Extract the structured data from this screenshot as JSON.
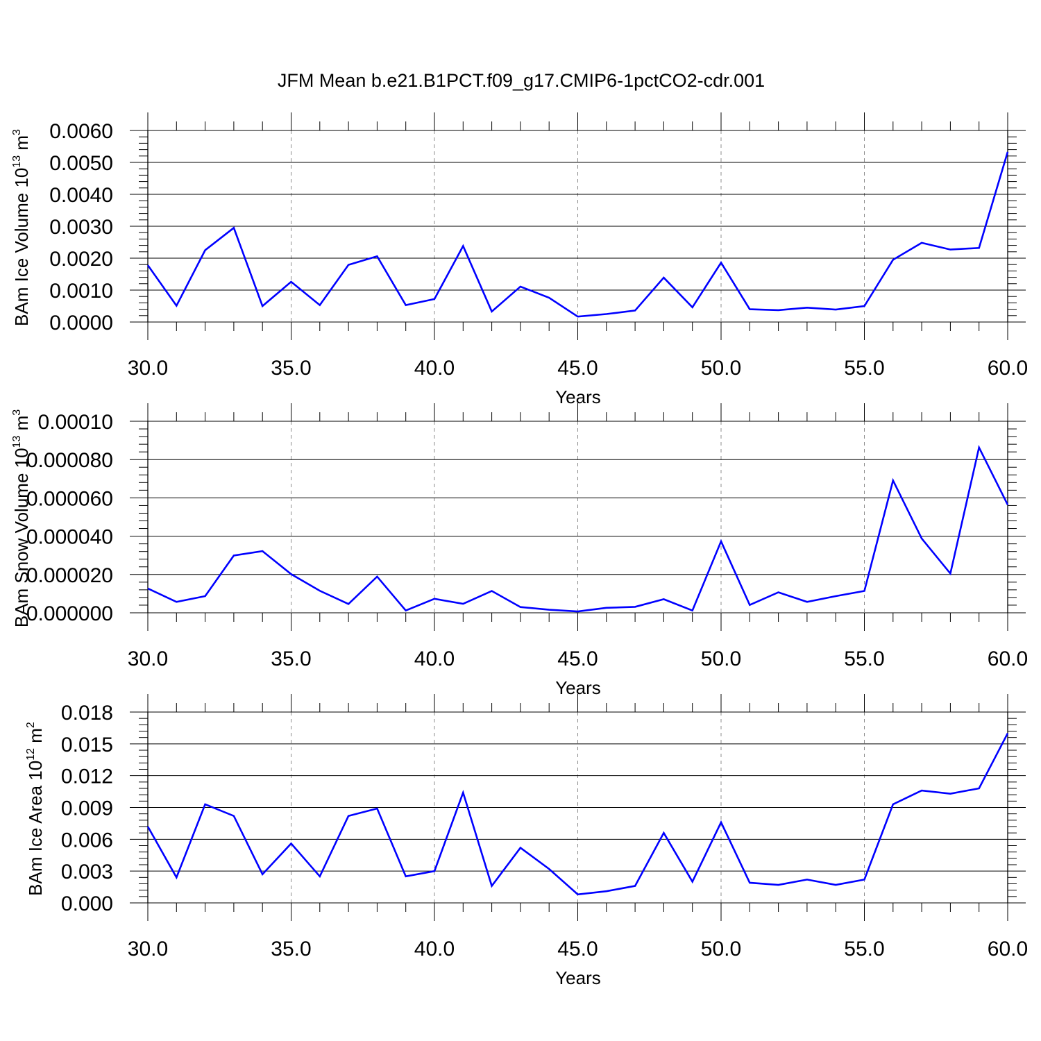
{
  "title": "JFM Mean b.e21.B1PCT.f09_g17.CMIP6-1pctCO2-cdr.001",
  "colors": {
    "line": "#0000ff",
    "axis": "#000000",
    "grid": "#8c8c8c",
    "background": "#ffffff"
  },
  "chart_data": [
    {
      "type": "line",
      "title": "",
      "xlabel": "Years",
      "ylabel": {
        "text": "BAm Ice Volume 10",
        "sup": "13",
        "unit": " m",
        "unit_sup": "3"
      },
      "xlim": [
        30,
        60
      ],
      "ylim": [
        0,
        0.006
      ],
      "x_ticks": [
        "30.0",
        "35.0",
        "40.0",
        "45.0",
        "50.0",
        "55.0",
        "60.0"
      ],
      "y_ticks": [
        "0.0000",
        "0.0010",
        "0.0020",
        "0.0030",
        "0.0040",
        "0.0050",
        "0.0060"
      ],
      "grid": "vertical dashed at major x ticks",
      "series": [
        {
          "x": [
            30,
            31,
            32,
            33,
            34,
            35,
            36,
            37,
            38,
            39,
            40,
            41,
            42,
            43,
            44,
            45,
            46,
            47,
            48,
            49,
            50,
            51,
            52,
            53,
            54,
            55,
            56,
            57,
            58,
            59,
            60
          ],
          "values": [
            0.00178,
            0.00051,
            0.00225,
            0.00295,
            0.0005,
            0.00126,
            0.00053,
            0.00179,
            0.00206,
            0.00053,
            0.00072,
            0.00238,
            0.00033,
            0.00111,
            0.00076,
            0.00017,
            0.00025,
            0.00036,
            0.00139,
            0.00046,
            0.00186,
            0.0004,
            0.00037,
            0.00045,
            0.00039,
            0.0005,
            0.00195,
            0.00248,
            0.00227,
            0.00232,
            0.00533
          ]
        }
      ]
    },
    {
      "type": "line",
      "title": "",
      "xlabel": "Years",
      "ylabel": {
        "text": "BAm Snow Volume 10",
        "sup": "13",
        "unit": " m",
        "unit_sup": "3"
      },
      "xlim": [
        30,
        60
      ],
      "ylim": [
        0,
        0.0001
      ],
      "x_ticks": [
        "30.0",
        "35.0",
        "40.0",
        "45.0",
        "50.0",
        "55.0",
        "60.0"
      ],
      "y_ticks": [
        "0.000000",
        "0.000020",
        "0.000040",
        "0.000060",
        "0.000080",
        "0.00010"
      ],
      "grid": "vertical dashed at major x ticks",
      "series": [
        {
          "x": [
            30,
            31,
            32,
            33,
            34,
            35,
            36,
            37,
            38,
            39,
            40,
            41,
            42,
            43,
            44,
            45,
            46,
            47,
            48,
            49,
            50,
            51,
            52,
            53,
            54,
            55,
            56,
            57,
            58,
            59,
            60
          ],
          "values": [
            1.27e-05,
            5.7e-06,
            8.7e-06,
            2.99e-05,
            3.22e-05,
            2.02e-05,
            1.15e-05,
            4.6e-06,
            1.89e-05,
            1.2e-06,
            7.3e-06,
            4.7e-06,
            1.14e-05,
            3e-06,
            1.6e-06,
            7e-07,
            2.6e-06,
            3.1e-06,
            7.1e-06,
            1.2e-06,
            3.73e-05,
            4.1e-06,
            1.07e-05,
            5.7e-06,
            8.7e-06,
            1.14e-05,
            6.91e-05,
            3.88e-05,
            2.05e-05,
            8.63e-05,
            5.64e-05
          ]
        }
      ]
    },
    {
      "type": "line",
      "title": "",
      "xlabel": "Years",
      "ylabel": {
        "text": "BAm Ice Area 10",
        "sup": "12",
        "unit": " m",
        "unit_sup": "2"
      },
      "xlim": [
        30,
        60
      ],
      "ylim": [
        0,
        0.018
      ],
      "x_ticks": [
        "30.0",
        "35.0",
        "40.0",
        "45.0",
        "50.0",
        "55.0",
        "60.0"
      ],
      "y_ticks": [
        "0.000",
        "0.003",
        "0.006",
        "0.009",
        "0.012",
        "0.015",
        "0.018"
      ],
      "grid": "vertical dashed at major x ticks",
      "series": [
        {
          "x": [
            30,
            31,
            32,
            33,
            34,
            35,
            36,
            37,
            38,
            39,
            40,
            41,
            42,
            43,
            44,
            45,
            46,
            47,
            48,
            49,
            50,
            51,
            52,
            53,
            54,
            55,
            56,
            57,
            58,
            59,
            60
          ],
          "values": [
            0.0072,
            0.0024,
            0.0093,
            0.0082,
            0.0027,
            0.0056,
            0.0025,
            0.0082,
            0.0089,
            0.0025,
            0.003,
            0.0104,
            0.0016,
            0.0052,
            0.0032,
            0.0008,
            0.0011,
            0.0016,
            0.0066,
            0.002,
            0.0076,
            0.0019,
            0.0017,
            0.0022,
            0.0017,
            0.0022,
            0.0093,
            0.0106,
            0.0103,
            0.0108,
            0.016
          ]
        }
      ]
    }
  ]
}
